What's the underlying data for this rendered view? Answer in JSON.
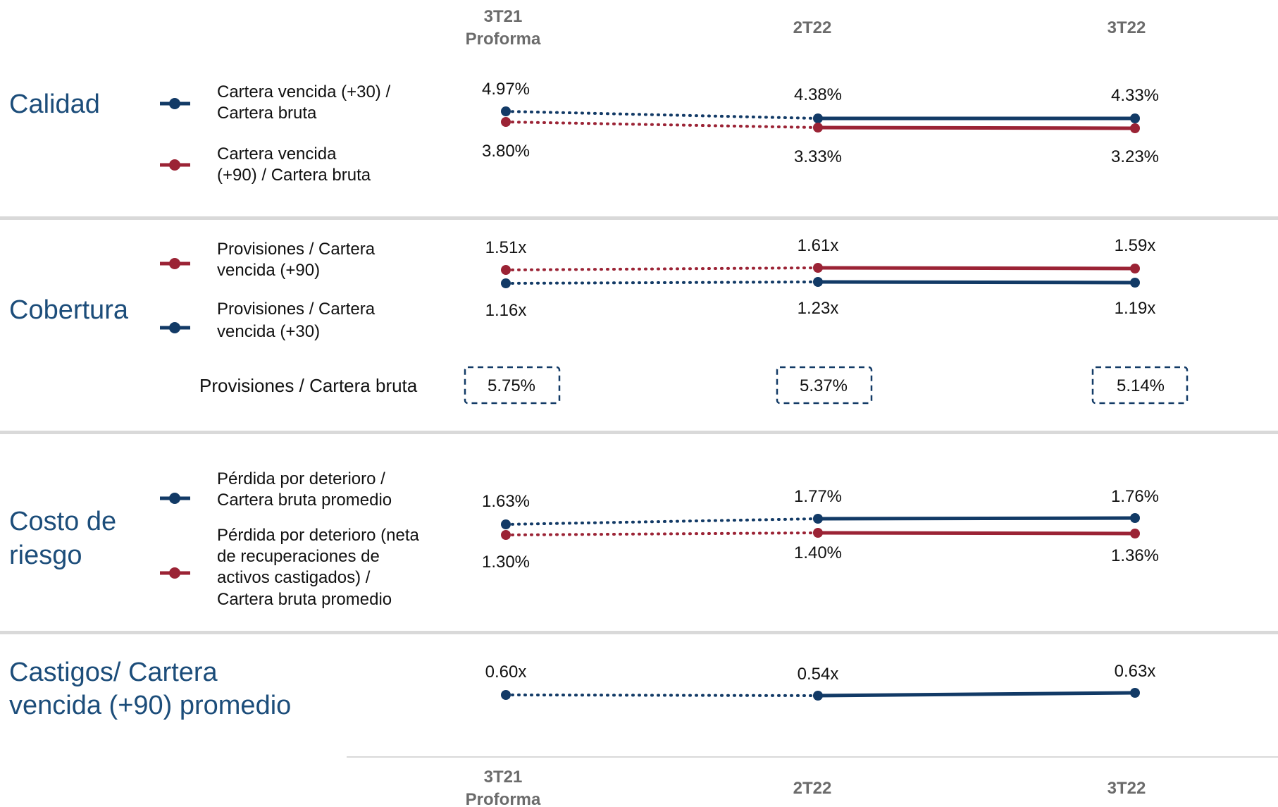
{
  "colors": {
    "navy": "#123a66",
    "red": "#9b2335",
    "title": "#1c4d7a",
    "header": "#6b6b6b",
    "divider": "#d9d9d9",
    "text": "#111111"
  },
  "headers": [
    {
      "line1": "3T21",
      "line2": "Proforma"
    },
    {
      "line1": "2T22",
      "line2": ""
    },
    {
      "line1": "3T22",
      "line2": ""
    }
  ],
  "sections": [
    {
      "title_lines": [
        "Calidad"
      ],
      "legend": [
        {
          "color": "navy",
          "lines": [
            "Cartera vencida (+30) /",
            "Cartera bruta"
          ]
        },
        {
          "color": "red",
          "lines": [
            "Cartera vencida",
            "(+90) / Cartera bruta"
          ]
        }
      ]
    },
    {
      "title_lines": [
        "Cobertura"
      ],
      "legend": [
        {
          "color": "red",
          "lines": [
            "Provisiones / Cartera",
            "vencida (+90)"
          ]
        },
        {
          "color": "navy",
          "lines": [
            "Provisiones / Cartera",
            "vencida (+30)"
          ]
        }
      ],
      "boxed_label": "Provisiones / Cartera bruta",
      "boxed_values": [
        "5.75%",
        "5.37%",
        "5.14%"
      ]
    },
    {
      "title_lines": [
        "Costo de",
        "riesgo"
      ],
      "legend": [
        {
          "color": "navy",
          "lines": [
            "Pérdida por deterioro /",
            "Cartera bruta promedio"
          ]
        },
        {
          "color": "red",
          "lines": [
            "Pérdida por deterioro (neta",
            "de recuperaciones de",
            "activos castigados) /",
            "Cartera bruta promedio"
          ]
        }
      ]
    },
    {
      "title_lines": [
        "Castigos/ Cartera",
        "vencida (+90) promedio"
      ],
      "legend": []
    }
  ],
  "chart_data": [
    {
      "type": "line",
      "categories": [
        "3T21 Proforma",
        "2T22",
        "3T22"
      ],
      "series": [
        {
          "name": "Cartera vencida (+30) / Cartera bruta",
          "color": "navy",
          "values": [
            4.97,
            4.38,
            4.33
          ],
          "labels": [
            "4.97%",
            "4.38%",
            "4.33%"
          ]
        },
        {
          "name": "Cartera vencida (+90) / Cartera bruta",
          "color": "red",
          "values": [
            3.8,
            3.33,
            3.23
          ],
          "labels": [
            "3.80%",
            "3.33%",
            "3.23%"
          ]
        }
      ]
    },
    {
      "type": "line",
      "categories": [
        "3T21 Proforma",
        "2T22",
        "3T22"
      ],
      "series": [
        {
          "name": "Provisiones / Cartera vencida (+90)",
          "color": "red",
          "values": [
            1.51,
            1.61,
            1.59
          ],
          "labels": [
            "1.51x",
            "1.61x",
            "1.59x"
          ]
        },
        {
          "name": "Provisiones / Cartera vencida (+30)",
          "color": "navy",
          "values": [
            1.16,
            1.23,
            1.19
          ],
          "labels": [
            "1.16x",
            "1.23x",
            "1.19x"
          ]
        }
      ]
    },
    {
      "type": "line",
      "categories": [
        "3T21 Proforma",
        "2T22",
        "3T22"
      ],
      "series": [
        {
          "name": "Pérdida por deterioro / Cartera bruta promedio",
          "color": "navy",
          "values": [
            1.63,
            1.77,
            1.76
          ],
          "labels": [
            "1.63%",
            "1.77%",
            "1.76%"
          ]
        },
        {
          "name": "Pérdida por deterioro (neta de recuperaciones de activos castigados) / Cartera bruta promedio",
          "color": "red",
          "values": [
            1.3,
            1.4,
            1.36
          ],
          "labels": [
            "1.30%",
            "1.40%",
            "1.36%"
          ]
        }
      ]
    },
    {
      "type": "line",
      "categories": [
        "3T21 Proforma",
        "2T22",
        "3T22"
      ],
      "series": [
        {
          "name": "Castigos/ Cartera vencida (+90) promedio",
          "color": "navy",
          "values": [
            0.6,
            0.54,
            0.63
          ],
          "labels": [
            "0.60x",
            "0.54x",
            "0.63x"
          ]
        }
      ]
    }
  ]
}
